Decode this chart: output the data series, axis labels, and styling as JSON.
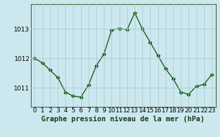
{
  "x": [
    0,
    1,
    2,
    3,
    4,
    5,
    6,
    7,
    8,
    9,
    10,
    11,
    12,
    13,
    14,
    15,
    16,
    17,
    18,
    19,
    20,
    21,
    22,
    23
  ],
  "y": [
    1012.0,
    1011.85,
    1011.6,
    1011.35,
    1010.85,
    1010.72,
    1010.68,
    1011.1,
    1011.75,
    1012.15,
    1012.97,
    1013.02,
    1012.98,
    1013.55,
    1013.0,
    1012.55,
    1012.1,
    1011.65,
    1011.3,
    1010.85,
    1010.78,
    1011.05,
    1011.12,
    1011.45
  ],
  "line_color": "#1a5c1a",
  "marker": "D",
  "bg_color": "#cce8ee",
  "grid_color": "#aaccd4",
  "title": "Graphe pression niveau de la mer (hPa)",
  "yticks": [
    1011,
    1012,
    1013
  ],
  "xticks": [
    0,
    1,
    2,
    3,
    4,
    5,
    6,
    7,
    8,
    9,
    10,
    11,
    12,
    13,
    14,
    15,
    16,
    17,
    18,
    19,
    20,
    21,
    22,
    23
  ],
  "ylim": [
    1010.35,
    1013.85
  ],
  "xlim": [
    -0.5,
    23.5
  ],
  "title_fontsize": 7.5,
  "tick_fontsize": 6.5,
  "line_width": 1.0,
  "marker_size": 2.5
}
